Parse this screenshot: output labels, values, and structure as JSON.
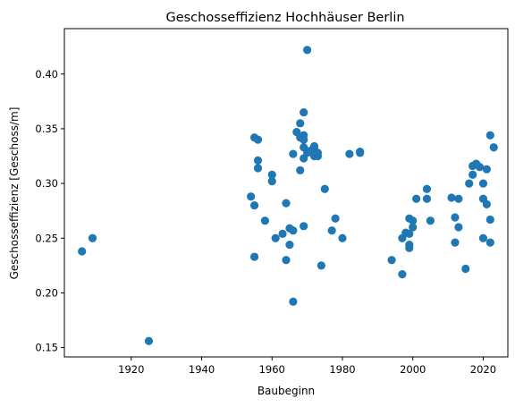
{
  "chart_data": {
    "type": "scatter",
    "title": "Geschosseffizienz Hochhäuser Berlin",
    "xlabel": "Baubeginn",
    "ylabel": "Geschosseffizienz [Geschoss/m]",
    "xlim": [
      1901,
      2027
    ],
    "ylim": [
      0.1415,
      0.4415
    ],
    "xticks": [
      1920,
      1940,
      1960,
      1980,
      2000,
      2020
    ],
    "yticks": [
      0.15,
      0.2,
      0.25,
      0.3,
      0.35,
      0.4
    ],
    "ytick_labels": [
      "0.15",
      "0.20",
      "0.25",
      "0.30",
      "0.35",
      "0.40"
    ],
    "grid": false,
    "legend": "none",
    "color": "#1f77b4",
    "points": [
      {
        "x": 1906,
        "y": 0.238
      },
      {
        "x": 1909,
        "y": 0.25
      },
      {
        "x": 1925,
        "y": 0.156
      },
      {
        "x": 1954,
        "y": 0.288
      },
      {
        "x": 1955,
        "y": 0.342
      },
      {
        "x": 1956,
        "y": 0.34
      },
      {
        "x": 1956,
        "y": 0.321
      },
      {
        "x": 1956,
        "y": 0.314
      },
      {
        "x": 1955,
        "y": 0.28
      },
      {
        "x": 1955,
        "y": 0.233
      },
      {
        "x": 1958,
        "y": 0.266
      },
      {
        "x": 1960,
        "y": 0.308
      },
      {
        "x": 1960,
        "y": 0.302
      },
      {
        "x": 1961,
        "y": 0.25
      },
      {
        "x": 1963,
        "y": 0.254
      },
      {
        "x": 1964,
        "y": 0.282
      },
      {
        "x": 1964,
        "y": 0.23
      },
      {
        "x": 1965,
        "y": 0.259
      },
      {
        "x": 1965,
        "y": 0.244
      },
      {
        "x": 1966,
        "y": 0.257
      },
      {
        "x": 1966,
        "y": 0.192
      },
      {
        "x": 1966,
        "y": 0.327
      },
      {
        "x": 1967,
        "y": 0.347
      },
      {
        "x": 1968,
        "y": 0.355
      },
      {
        "x": 1968,
        "y": 0.342
      },
      {
        "x": 1968,
        "y": 0.312
      },
      {
        "x": 1969,
        "y": 0.365
      },
      {
        "x": 1969,
        "y": 0.344
      },
      {
        "x": 1969,
        "y": 0.34
      },
      {
        "x": 1969,
        "y": 0.333
      },
      {
        "x": 1969,
        "y": 0.323
      },
      {
        "x": 1969,
        "y": 0.261
      },
      {
        "x": 1970,
        "y": 0.422
      },
      {
        "x": 1970,
        "y": 0.328
      },
      {
        "x": 1971,
        "y": 0.33
      },
      {
        "x": 1972,
        "y": 0.334
      },
      {
        "x": 1972,
        "y": 0.331
      },
      {
        "x": 1972,
        "y": 0.325
      },
      {
        "x": 1973,
        "y": 0.325
      },
      {
        "x": 1973,
        "y": 0.328
      },
      {
        "x": 1974,
        "y": 0.225
      },
      {
        "x": 1975,
        "y": 0.295
      },
      {
        "x": 1977,
        "y": 0.257
      },
      {
        "x": 1978,
        "y": 0.268
      },
      {
        "x": 1980,
        "y": 0.25
      },
      {
        "x": 1982,
        "y": 0.327
      },
      {
        "x": 1985,
        "y": 0.329
      },
      {
        "x": 1985,
        "y": 0.328
      },
      {
        "x": 1994,
        "y": 0.23
      },
      {
        "x": 1997,
        "y": 0.217
      },
      {
        "x": 1997,
        "y": 0.25
      },
      {
        "x": 1998,
        "y": 0.255
      },
      {
        "x": 1999,
        "y": 0.268
      },
      {
        "x": 1999,
        "y": 0.254
      },
      {
        "x": 1999,
        "y": 0.244
      },
      {
        "x": 1999,
        "y": 0.241
      },
      {
        "x": 2000,
        "y": 0.266
      },
      {
        "x": 2000,
        "y": 0.26
      },
      {
        "x": 2001,
        "y": 0.286
      },
      {
        "x": 2004,
        "y": 0.295
      },
      {
        "x": 2004,
        "y": 0.286
      },
      {
        "x": 2005,
        "y": 0.266
      },
      {
        "x": 2011,
        "y": 0.287
      },
      {
        "x": 2012,
        "y": 0.269
      },
      {
        "x": 2012,
        "y": 0.246
      },
      {
        "x": 2013,
        "y": 0.286
      },
      {
        "x": 2013,
        "y": 0.26
      },
      {
        "x": 2015,
        "y": 0.222
      },
      {
        "x": 2016,
        "y": 0.3
      },
      {
        "x": 2017,
        "y": 0.308
      },
      {
        "x": 2017,
        "y": 0.316
      },
      {
        "x": 2018,
        "y": 0.318
      },
      {
        "x": 2019,
        "y": 0.315
      },
      {
        "x": 2020,
        "y": 0.3
      },
      {
        "x": 2020,
        "y": 0.286
      },
      {
        "x": 2020,
        "y": 0.25
      },
      {
        "x": 2021,
        "y": 0.313
      },
      {
        "x": 2021,
        "y": 0.281
      },
      {
        "x": 2022,
        "y": 0.344
      },
      {
        "x": 2022,
        "y": 0.267
      },
      {
        "x": 2022,
        "y": 0.246
      },
      {
        "x": 2023,
        "y": 0.333
      }
    ]
  }
}
